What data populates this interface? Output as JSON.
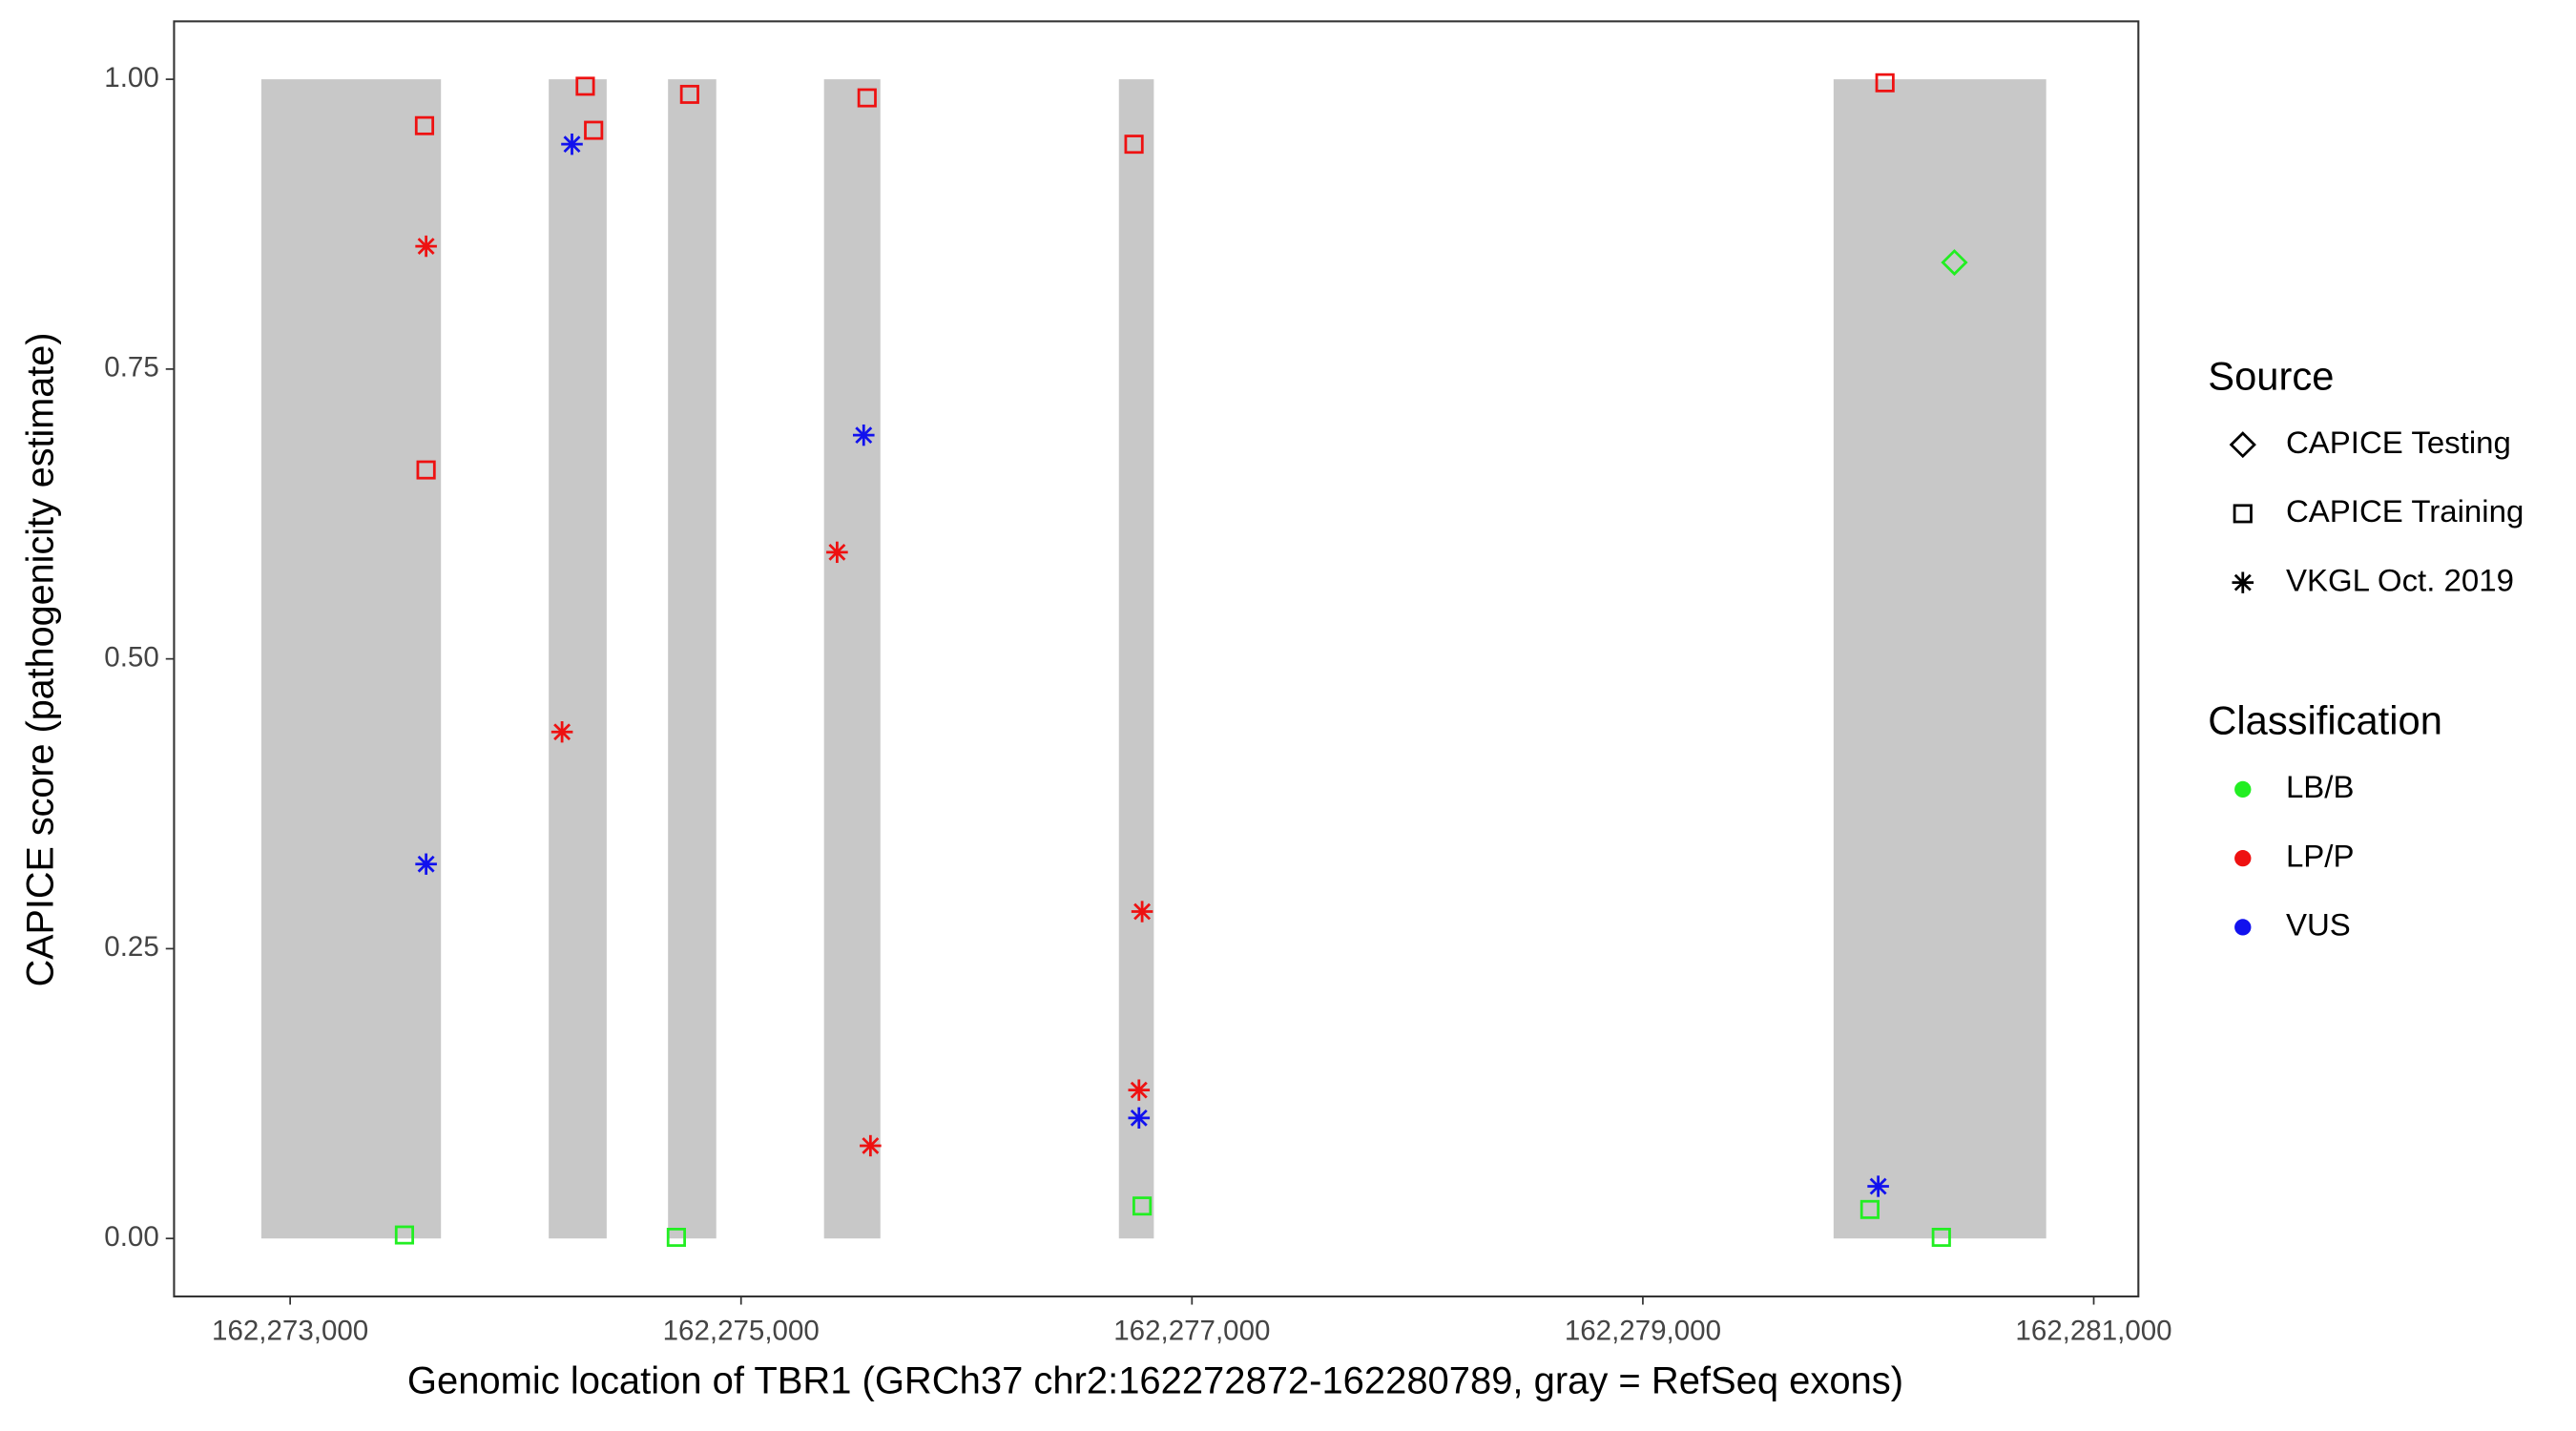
{
  "chart_data": {
    "type": "scatter",
    "x_label": "Genomic location of TBR1 (GRCh37 chr2:162272872-162280789, gray = RefSeq exons)",
    "y_label": "CAPICE score (pathogenicity estimate)",
    "xlim": [
      162272485,
      162281198
    ],
    "ylim": [
      -0.05,
      1.05
    ],
    "xticks": [
      {
        "value": 162273000,
        "label": "162,273,000"
      },
      {
        "value": 162275000,
        "label": "162,275,000"
      },
      {
        "value": 162277000,
        "label": "162,277,000"
      },
      {
        "value": 162279000,
        "label": "162,279,000"
      },
      {
        "value": 162281000,
        "label": "162,281,000"
      }
    ],
    "yticks": [
      {
        "value": 0,
        "label": "0.00"
      },
      0.25,
      {
        "value": 0.5,
        "label": "0.50"
      },
      0.75,
      {
        "value": 1,
        "label": "1.00"
      }
    ],
    "exon_color": "#c8c8c8",
    "exons": [
      [
        162272872,
        162273669
      ],
      [
        162274147,
        162274404
      ],
      [
        162274676,
        162274890
      ],
      [
        162275368,
        162275618
      ],
      [
        162276676,
        162276831
      ],
      [
        162279846,
        162280789
      ]
    ],
    "source_title": "Source",
    "sources": [
      {
        "name": "CAPICE Testing",
        "shape": "diamond"
      },
      {
        "name": "CAPICE Training",
        "shape": "square"
      },
      {
        "name": "VKGL Oct. 2019",
        "shape": "asterisk"
      }
    ],
    "classification_title": "Classification",
    "series": [
      {
        "name": "LB/B",
        "color": "#22ee22",
        "x": [
          162273507,
          162274713,
          162276779,
          162280382,
          162280007,
          162280324
        ],
        "values": [
          0.003,
          0.001,
          0.028,
          0.842,
          0.025,
          0.001
        ],
        "sources": [
          "CAPICE Training",
          "CAPICE Training",
          "CAPICE Training",
          "CAPICE Testing",
          "CAPICE Training",
          "CAPICE Training"
        ]
      },
      {
        "name": "LP/P",
        "color": "#ee1111",
        "x": [
          162273596,
          162273603,
          162273603,
          162274309,
          162274346,
          162274206,
          162274772,
          162275559,
          162275426,
          162275574,
          162276743,
          162276779,
          162276765,
          162280074
        ],
        "values": [
          0.96,
          0.856,
          0.663,
          0.994,
          0.956,
          0.437,
          0.987,
          0.984,
          0.592,
          0.08,
          0.944,
          0.282,
          0.128,
          0.997
        ],
        "sources": [
          "CAPICE Training",
          "VKGL Oct. 2019",
          "CAPICE Training",
          "CAPICE Training",
          "CAPICE Training",
          "VKGL Oct. 2019",
          "CAPICE Training",
          "CAPICE Training",
          "VKGL Oct. 2019",
          "VKGL Oct. 2019",
          "CAPICE Training",
          "VKGL Oct. 2019",
          "VKGL Oct. 2019",
          "CAPICE Training"
        ]
      },
      {
        "name": "VUS",
        "color": "#1111ee",
        "x": [
          162273603,
          162274250,
          162275544,
          162276765,
          162280044
        ],
        "values": [
          0.323,
          0.944,
          0.693,
          0.104,
          0.045
        ],
        "sources": [
          "VKGL Oct. 2019",
          "VKGL Oct. 2019",
          "VKGL Oct. 2019",
          "VKGL Oct. 2019",
          "VKGL Oct. 2019"
        ]
      }
    ]
  }
}
